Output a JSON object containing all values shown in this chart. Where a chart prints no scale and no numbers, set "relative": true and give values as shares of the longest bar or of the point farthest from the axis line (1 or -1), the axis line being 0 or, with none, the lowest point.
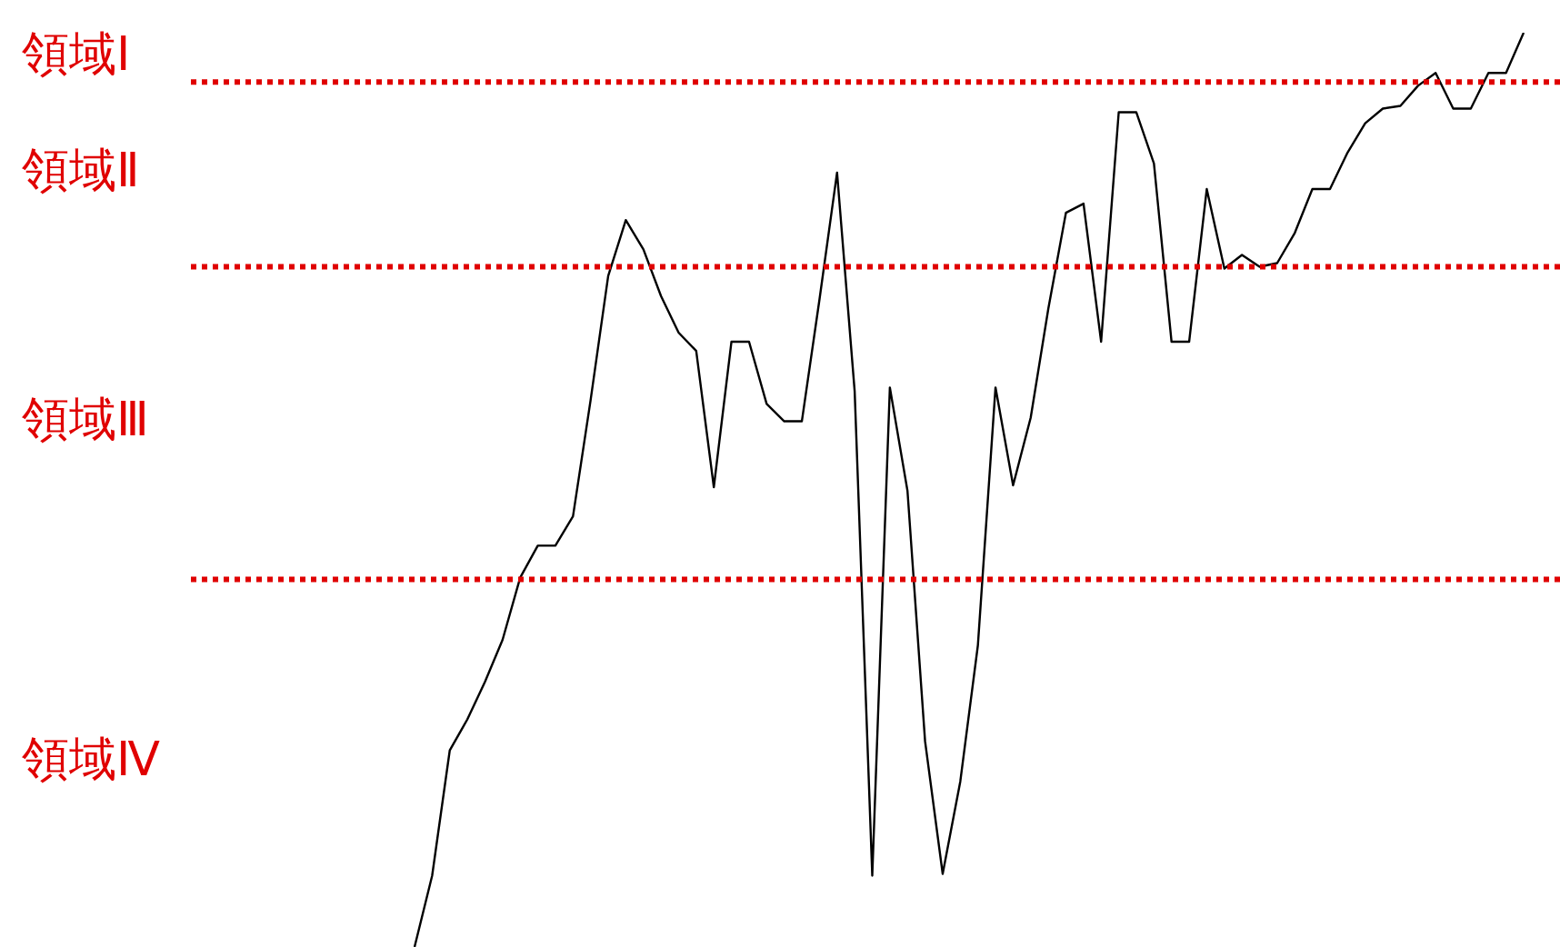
{
  "chart_data": {
    "type": "line",
    "relative": true,
    "marker": "none",
    "line_style": "solid",
    "legend": false,
    "categories": [
      null,
      null,
      null,
      null,
      null,
      null,
      null,
      null,
      null,
      null,
      null,
      null,
      null,
      null,
      null,
      null,
      null,
      null,
      null,
      null,
      null,
      null,
      null,
      null,
      null,
      null,
      null,
      null,
      null,
      null,
      null,
      null,
      null,
      null,
      null,
      null,
      null,
      null,
      null,
      null,
      null,
      null,
      null,
      null,
      null,
      null,
      null,
      null,
      null,
      null,
      null,
      null,
      null,
      null,
      null,
      null,
      null,
      null,
      null,
      null,
      null,
      null,
      null,
      null
    ],
    "series": [
      {
        "color": "#000000",
        "values": [
          0,
          0.078,
          0.215,
          0.249,
          0.29,
          0.336,
          0.404,
          0.439,
          0.439,
          0.471,
          0.598,
          0.734,
          0.795,
          0.763,
          0.712,
          0.672,
          0.652,
          0.503,
          0.662,
          0.662,
          0.594,
          0.575,
          0.575,
          0.708,
          0.847,
          0.608,
          0.078,
          0.612,
          0.499,
          0.225,
          0.08,
          0.181,
          0.33,
          0.612,
          0.505,
          0.579,
          0.698,
          0.803,
          0.813,
          0.662,
          0.913,
          0.913,
          0.857,
          0.662,
          0.662,
          0.829,
          0.742,
          0.757,
          0.744,
          0.748,
          0.781,
          0.829,
          0.829,
          0.869,
          0.901,
          0.917,
          0.92,
          0.942,
          0.956,
          0.917,
          0.917,
          0.956,
          0.956,
          1
        ]
      }
    ],
    "ref_lines": [
      {
        "axis": "y",
        "value": 0.946,
        "color": "#e00000",
        "line_style": "dotted"
      },
      {
        "axis": "y",
        "value": 0.744,
        "color": "#e00000",
        "line_style": "dotted"
      },
      {
        "axis": "y",
        "value": 0.402,
        "color": "#e00000",
        "line_style": "dotted"
      }
    ],
    "annotations": [
      "領域Ⅰ",
      "領域Ⅱ",
      "領域Ⅲ",
      "領域Ⅳ"
    ]
  }
}
